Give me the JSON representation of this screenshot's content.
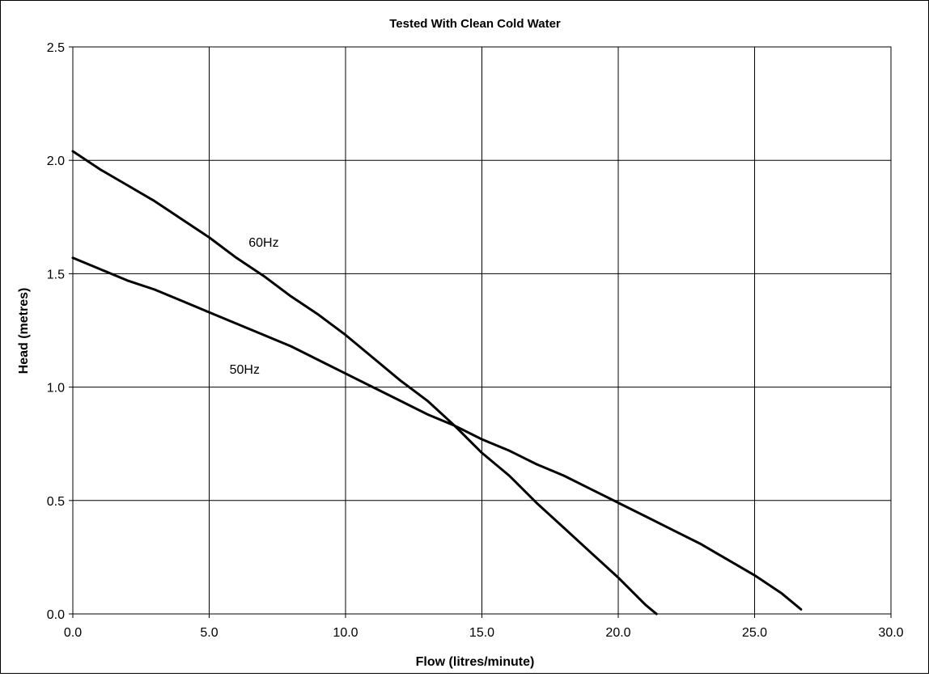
{
  "chart_data": {
    "type": "line",
    "title": "Tested With Clean Cold Water",
    "xlabel": "Flow (litres/minute)",
    "ylabel": "Head (metres)",
    "xlim": [
      0,
      30
    ],
    "ylim": [
      0,
      2.5
    ],
    "xticks": [
      "0.0",
      "5.0",
      "10.0",
      "15.0",
      "20.0",
      "25.0",
      "30.0"
    ],
    "yticks": [
      "0.0",
      "0.5",
      "1.0",
      "1.5",
      "2.0",
      "2.5"
    ],
    "grid": true,
    "legend": "none",
    "series": [
      {
        "name": "60Hz",
        "x": [
          0.0,
          1.0,
          2.0,
          3.0,
          4.0,
          5.0,
          6.0,
          7.0,
          8.0,
          9.0,
          10.0,
          11.0,
          12.0,
          13.0,
          14.0,
          15.0,
          16.0,
          17.0,
          18.0,
          19.0,
          20.0,
          21.0,
          21.4
        ],
        "values": [
          2.04,
          1.96,
          1.89,
          1.82,
          1.74,
          1.66,
          1.57,
          1.49,
          1.4,
          1.32,
          1.23,
          1.13,
          1.03,
          0.94,
          0.83,
          0.71,
          0.61,
          0.49,
          0.38,
          0.27,
          0.16,
          0.04,
          0.0
        ]
      },
      {
        "name": "50Hz",
        "x": [
          0.0,
          1.0,
          2.0,
          3.0,
          4.0,
          5.0,
          6.0,
          7.0,
          8.0,
          9.0,
          10.0,
          11.0,
          12.0,
          13.0,
          14.0,
          15.0,
          16.0,
          17.0,
          18.0,
          19.0,
          20.0,
          21.0,
          22.0,
          23.0,
          24.0,
          25.0,
          26.0,
          26.7
        ],
        "values": [
          1.57,
          1.52,
          1.47,
          1.43,
          1.38,
          1.33,
          1.28,
          1.23,
          1.18,
          1.12,
          1.06,
          1.0,
          0.94,
          0.88,
          0.83,
          0.77,
          0.72,
          0.66,
          0.61,
          0.55,
          0.49,
          0.43,
          0.37,
          0.31,
          0.24,
          0.17,
          0.09,
          0.02
        ]
      }
    ],
    "annotations": [
      {
        "text": "60Hz",
        "x": 7.0,
        "y": 1.62
      },
      {
        "text": "50Hz",
        "x": 6.3,
        "y": 1.06
      }
    ],
    "colors": {
      "line": "#000000",
      "grid": "#000000",
      "background": "#ffffff"
    }
  }
}
